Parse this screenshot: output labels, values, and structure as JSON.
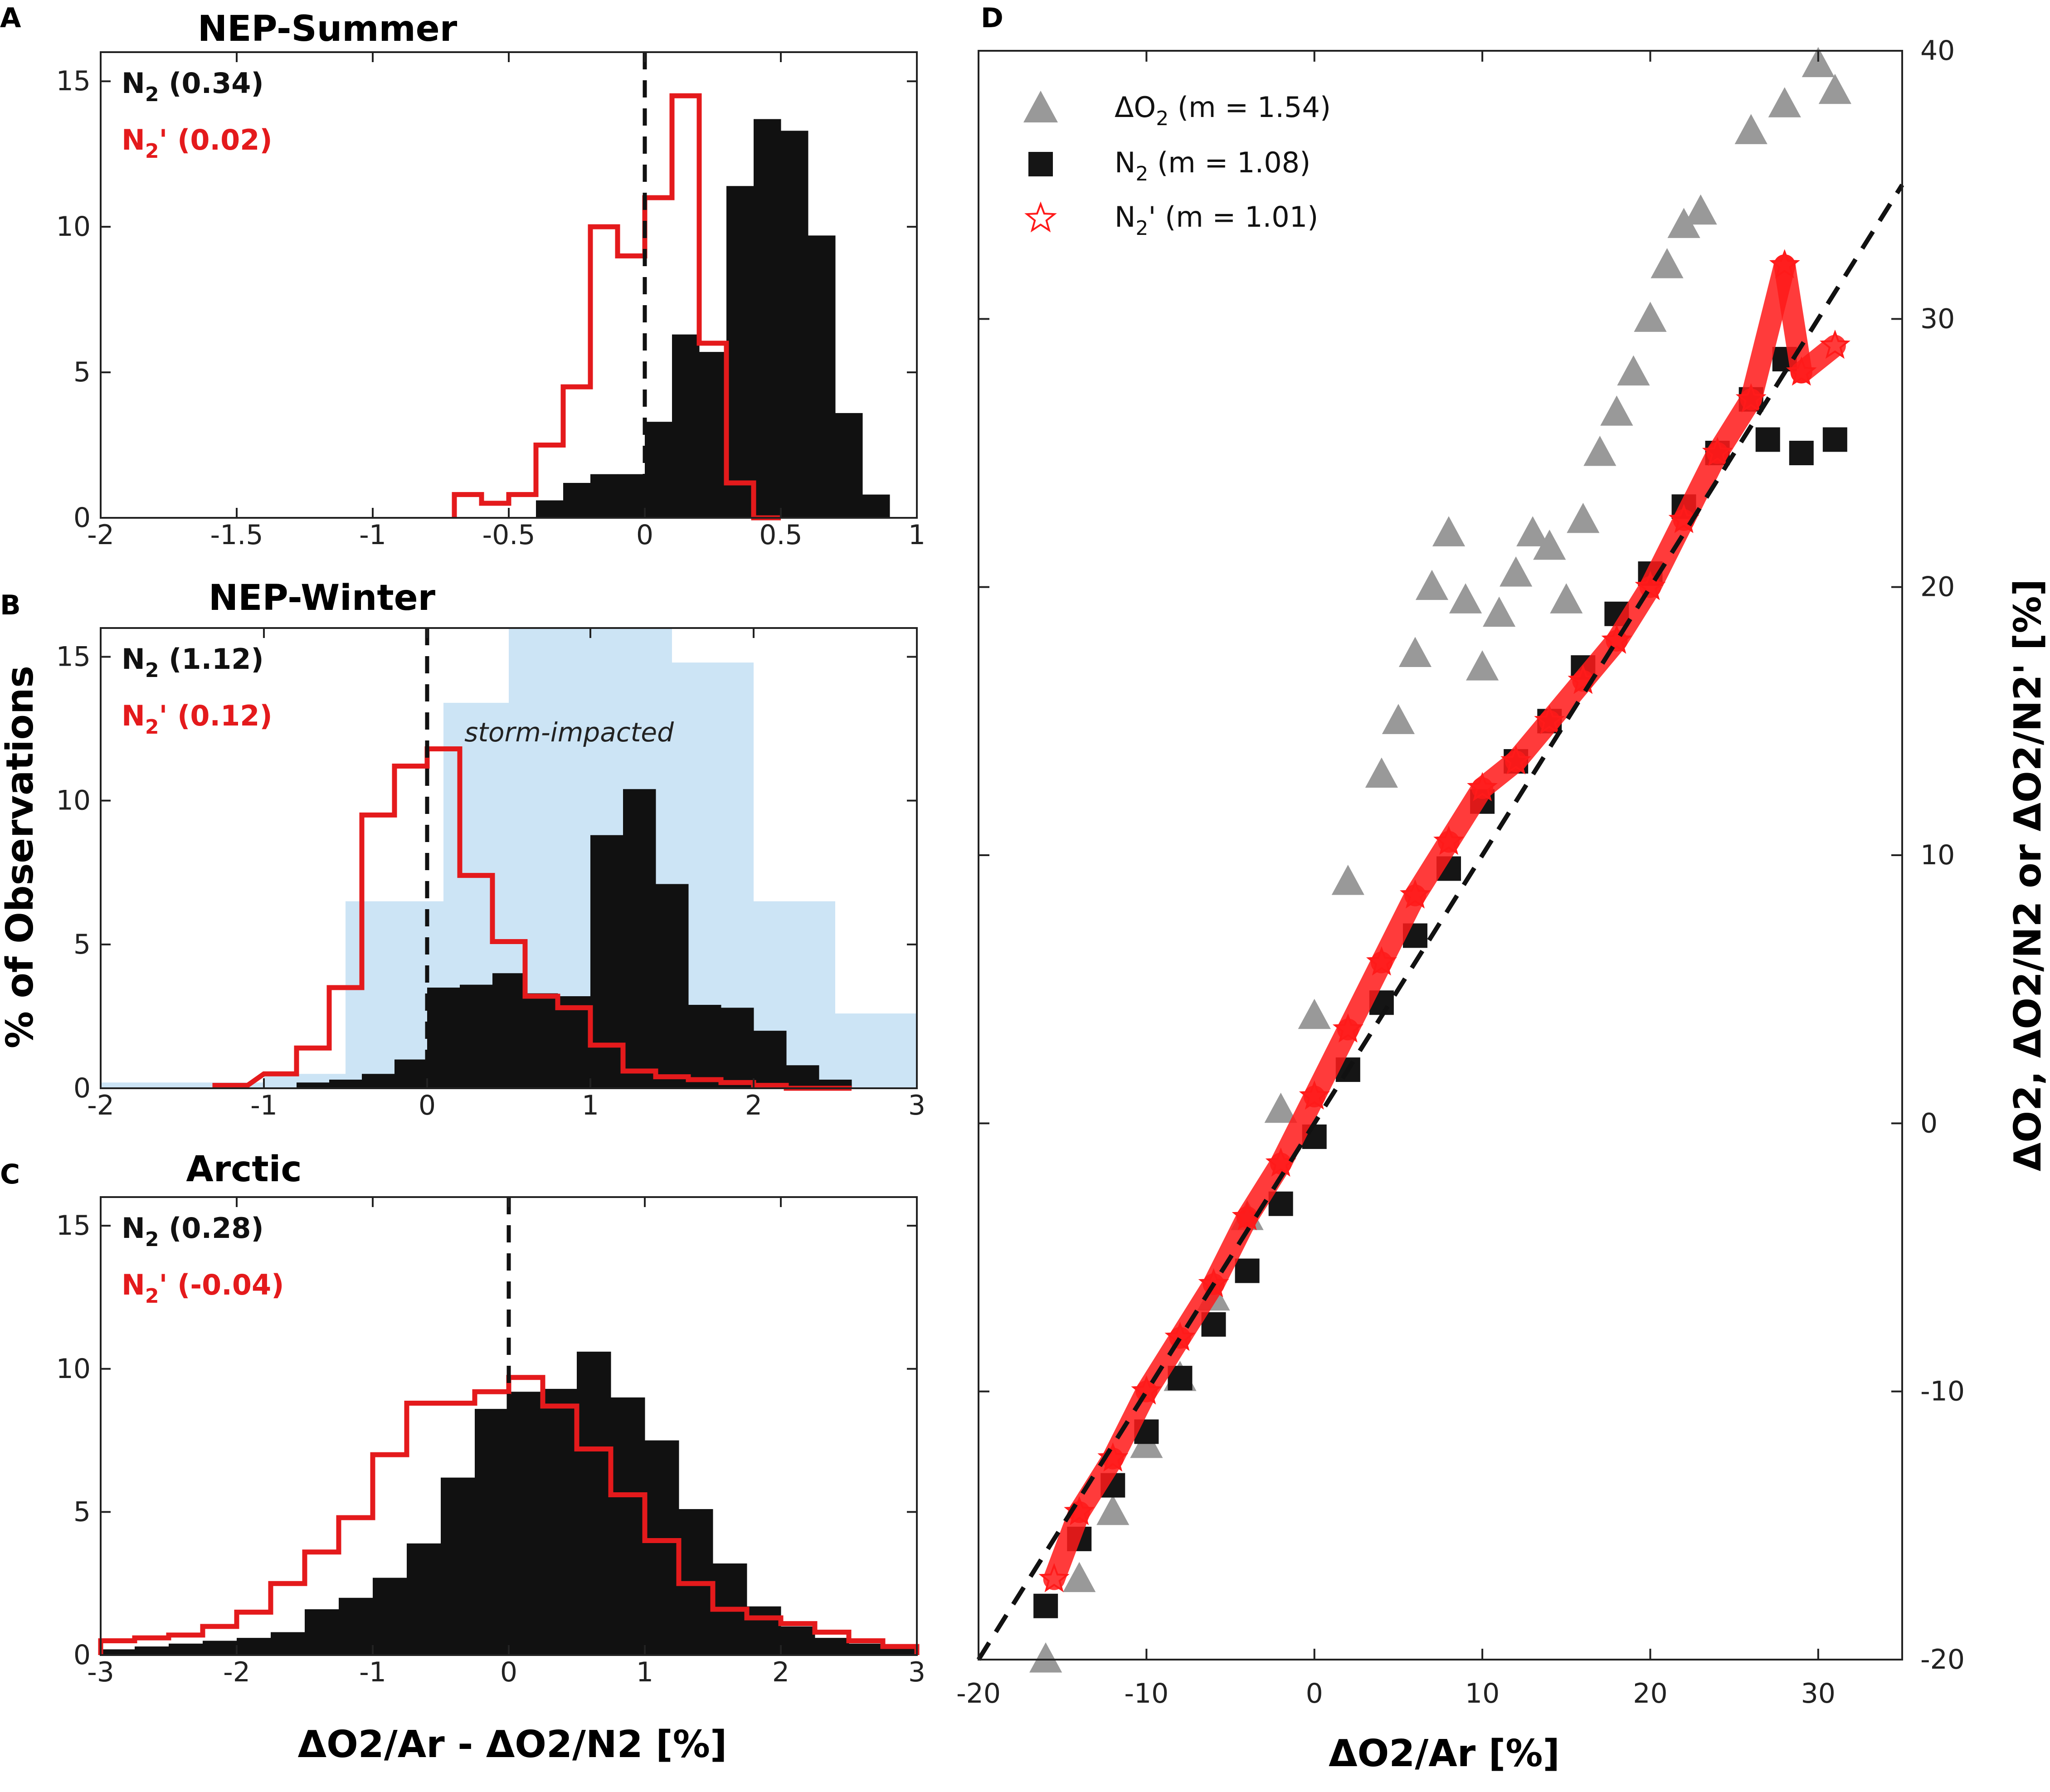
{
  "chart_data": [
    {
      "panel": "A",
      "type": "histogram",
      "title": "NEP-Summer",
      "xlabel": "",
      "ylabel": "",
      "xlim": [
        -2,
        1
      ],
      "ylim": [
        0,
        16
      ],
      "bin_width": 0.1,
      "xticks": [
        -2,
        -1.5,
        -1,
        -0.5,
        0,
        0.5,
        1
      ],
      "xtick_labels": [
        "-2",
        "-1.5",
        "-1",
        "-0.5",
        "0",
        "0.5",
        "1"
      ],
      "yticks": [
        0,
        5,
        10,
        15
      ],
      "ytick_labels": [
        "0",
        "5",
        "10",
        "15"
      ],
      "series": [
        {
          "name": "N2",
          "style": "filled",
          "color": "#111111",
          "label_main": "N",
          "label_sub": "2",
          "label_rest": " (0.34)",
          "x": [
            -0.4,
            -0.3,
            -0.2,
            -0.1,
            0.0,
            0.1,
            0.2,
            0.3,
            0.4,
            0.5,
            0.6,
            0.7,
            0.8
          ],
          "values": [
            0.6,
            1.2,
            1.5,
            1.5,
            3.3,
            6.3,
            5.7,
            11.4,
            13.7,
            13.3,
            9.7,
            3.6,
            0.8
          ]
        },
        {
          "name": "N2'",
          "style": "step",
          "color": "#e41a1c",
          "label_main": "N",
          "label_sub": "2",
          "label_rest": "' (0.02)",
          "x": [
            -0.7,
            -0.6,
            -0.5,
            -0.4,
            -0.3,
            -0.2,
            -0.1,
            0.0,
            0.1,
            0.2,
            0.3,
            0.4
          ],
          "values": [
            0.8,
            0.5,
            0.8,
            2.5,
            4.5,
            10.0,
            9.0,
            11.0,
            14.5,
            6.0,
            1.2,
            0.0
          ]
        }
      ],
      "reference_line": {
        "x": 0,
        "style": "dashed",
        "color": "#111111"
      }
    },
    {
      "panel": "B",
      "type": "histogram",
      "title": "NEP-Winter",
      "xlabel": "",
      "ylabel": "% of Observations",
      "xlim": [
        -2,
        3
      ],
      "ylim": [
        0,
        16
      ],
      "bin_width": 0.2,
      "xticks": [
        -2,
        -1,
        0,
        1,
        2,
        3
      ],
      "xtick_labels": [
        "-2",
        "-1",
        "0",
        "1",
        "2",
        "3"
      ],
      "yticks": [
        0,
        5,
        10,
        15
      ],
      "ytick_labels": [
        "0",
        "5",
        "10",
        "15"
      ],
      "background": {
        "name": "storm-impacted",
        "color": "#cce4f5",
        "bins": [
          [
            -2,
            -1,
            0.2
          ],
          [
            -1,
            -0.5,
            0.5
          ],
          [
            -0.5,
            0.1,
            6.5
          ],
          [
            0.1,
            0.5,
            13.4
          ],
          [
            0.5,
            1.5,
            16.0
          ],
          [
            1.5,
            2.0,
            14.8
          ],
          [
            2.0,
            2.5,
            6.5
          ],
          [
            2.5,
            3.0,
            2.6
          ]
        ]
      },
      "series": [
        {
          "name": "N2",
          "style": "filled",
          "color": "#111111",
          "label_main": "N",
          "label_sub": "2",
          "label_rest": " (1.12)",
          "x": [
            -0.8,
            -0.6,
            -0.4,
            -0.2,
            0.0,
            0.2,
            0.4,
            0.6,
            0.8,
            1.0,
            1.2,
            1.4,
            1.6,
            1.8,
            2.0,
            2.2,
            2.4
          ],
          "values": [
            0.2,
            0.3,
            0.5,
            1.0,
            3.5,
            3.6,
            4.0,
            3.3,
            3.2,
            8.8,
            10.4,
            7.1,
            2.9,
            2.8,
            2.0,
            0.8,
            0.3
          ]
        },
        {
          "name": "N2'",
          "style": "step",
          "color": "#e41a1c",
          "label_main": "N",
          "label_sub": "2",
          "label_rest": "' (0.12)",
          "x": [
            -1.3,
            -1.0,
            -0.8,
            -0.6,
            -0.4,
            -0.2,
            0.0,
            0.2,
            0.4,
            0.6,
            0.8,
            1.0,
            1.2,
            1.4,
            1.6,
            1.8,
            2.0,
            2.2,
            2.4
          ],
          "values": [
            0.1,
            0.5,
            1.4,
            3.5,
            9.5,
            11.2,
            11.8,
            7.4,
            5.1,
            3.2,
            2.8,
            1.5,
            0.6,
            0.4,
            0.3,
            0.2,
            0.1,
            0.0,
            0.0
          ]
        }
      ],
      "annotations": [
        {
          "text": "storm-impacted",
          "x": 1.2,
          "y": 12.5
        }
      ],
      "reference_line": {
        "x": 0,
        "style": "dashed",
        "color": "#111111"
      }
    },
    {
      "panel": "C",
      "type": "histogram",
      "title": "Arctic",
      "xlabel": "ΔO2/Ar - ΔO2/N2 [%]",
      "ylabel": "",
      "xlim": [
        -3,
        3
      ],
      "ylim": [
        0,
        16
      ],
      "bin_width": 0.25,
      "xticks": [
        -3,
        -2,
        -1,
        0,
        1,
        2,
        3
      ],
      "xtick_labels": [
        "-3",
        "-2",
        "-1",
        "0",
        "1",
        "2",
        "3"
      ],
      "yticks": [
        0,
        5,
        10,
        15
      ],
      "ytick_labels": [
        "0",
        "5",
        "10",
        "15"
      ],
      "series": [
        {
          "name": "N2",
          "style": "filled",
          "color": "#111111",
          "label_main": "N",
          "label_sub": "2",
          "label_rest": " (0.28)",
          "x": [
            -3.0,
            -2.75,
            -2.5,
            -2.25,
            -2.0,
            -1.75,
            -1.5,
            -1.25,
            -1.0,
            -0.75,
            -0.5,
            -0.25,
            0.0,
            0.25,
            0.5,
            0.75,
            1.0,
            1.25,
            1.5,
            1.75,
            2.0,
            2.25,
            2.5,
            2.75
          ],
          "values": [
            0.2,
            0.3,
            0.4,
            0.5,
            0.6,
            0.8,
            1.6,
            2.0,
            2.7,
            3.9,
            6.2,
            8.6,
            9.2,
            9.3,
            10.6,
            9.0,
            7.5,
            5.1,
            3.2,
            1.7,
            1.0,
            0.6,
            0.4,
            0.3
          ]
        },
        {
          "name": "N2'",
          "style": "step",
          "color": "#e41a1c",
          "label_main": "N",
          "label_sub": "2",
          "label_rest": "' (-0.04)",
          "x": [
            -3.0,
            -2.75,
            -2.5,
            -2.25,
            -2.0,
            -1.75,
            -1.5,
            -1.25,
            -1.0,
            -0.75,
            -0.5,
            -0.25,
            0.0,
            0.25,
            0.5,
            0.75,
            1.0,
            1.25,
            1.5,
            1.75,
            2.0,
            2.25,
            2.5,
            2.75
          ],
          "values": [
            0.5,
            0.6,
            0.7,
            1.0,
            1.5,
            2.5,
            3.6,
            4.8,
            7.0,
            8.8,
            8.8,
            9.2,
            9.7,
            8.7,
            7.2,
            5.6,
            4.0,
            2.5,
            1.6,
            1.3,
            1.1,
            0.8,
            0.5,
            0.3
          ]
        }
      ],
      "reference_line": {
        "x": 0,
        "style": "dashed",
        "color": "#111111"
      }
    },
    {
      "panel": "D",
      "type": "scatter",
      "title": "",
      "xlabel": "ΔO2/Ar [%]",
      "ylabel": "ΔO2, ΔO2/N2 or ΔO2/N2' [%]",
      "xlim": [
        -20,
        35
      ],
      "ylim": [
        -20,
        40
      ],
      "xticks": [
        -20,
        -10,
        0,
        10,
        20,
        30
      ],
      "xtick_labels": [
        "-20",
        "-10",
        "0",
        "10",
        "20",
        "30"
      ],
      "yticks": [
        -20,
        -10,
        0,
        10,
        20,
        30,
        40
      ],
      "ytick_labels": [
        "-20",
        "-10",
        "0",
        "10",
        "20",
        "30",
        "40"
      ],
      "one_to_one_line": {
        "x": [
          -20,
          35
        ],
        "y": [
          -20,
          35
        ],
        "style": "dashed"
      },
      "series": [
        {
          "name": "ΔO2",
          "marker": "triangle",
          "color": "#999999",
          "slope": 1.54,
          "label_main": "ΔO",
          "label_sub": "2",
          "label_rest": " (m = 1.54)",
          "x": [
            -16,
            -14,
            -12,
            -10,
            -8,
            -6,
            -4,
            -2,
            0,
            2,
            4,
            5,
            6,
            7,
            8,
            9,
            10,
            11,
            12,
            13,
            14,
            15,
            16,
            17,
            18,
            19,
            20,
            21,
            22,
            23,
            26,
            28,
            30,
            31
          ],
          "y": [
            -20,
            -17,
            -14.5,
            -12,
            -9.5,
            -6.5,
            -3.5,
            0.5,
            4,
            9,
            13,
            15,
            17.5,
            20,
            22,
            19.5,
            17,
            19,
            20.5,
            22,
            21.5,
            19.5,
            22.5,
            25,
            26.5,
            28,
            30,
            32,
            33.5,
            34,
            37,
            38,
            39.5,
            38.5
          ]
        },
        {
          "name": "N2",
          "marker": "square",
          "color": "#151515",
          "slope": 1.08,
          "label_main": "N",
          "label_sub": "2",
          "label_rest": " (m = 1.08)",
          "x": [
            -16,
            -14,
            -12,
            -10,
            -8,
            -6,
            -4,
            -2,
            0,
            2,
            4,
            6,
            8,
            10,
            12,
            14,
            16,
            18,
            20,
            22,
            24,
            26,
            27,
            28,
            29,
            31
          ],
          "y": [
            -18,
            -15.5,
            -13.5,
            -11.5,
            -9.5,
            -7.5,
            -5.5,
            -3,
            -0.5,
            2,
            4.5,
            7,
            9.5,
            12,
            13.5,
            15,
            17,
            19,
            20.5,
            23,
            25,
            27,
            25.5,
            28.5,
            25,
            25.5
          ]
        },
        {
          "name": "N2'",
          "marker": "star",
          "color": "#ff1a1a",
          "slope": 1.01,
          "label_main": "N",
          "label_sub": "2",
          "label_rest": "' (m = 1.01)",
          "x": [
            -15.5,
            -14,
            -12,
            -10,
            -8,
            -6,
            -4,
            -2,
            0,
            2,
            4,
            6,
            8,
            10,
            12,
            14,
            16,
            18,
            20,
            22,
            24,
            26,
            28,
            29,
            31
          ],
          "y": [
            -17,
            -14.5,
            -12.5,
            -10,
            -8,
            -6,
            -3.5,
            -1.5,
            1,
            3.5,
            6,
            8.5,
            10.5,
            12.5,
            13.5,
            15,
            16.5,
            18,
            20,
            22.5,
            25,
            27,
            32,
            28,
            29
          ]
        }
      ]
    }
  ]
}
